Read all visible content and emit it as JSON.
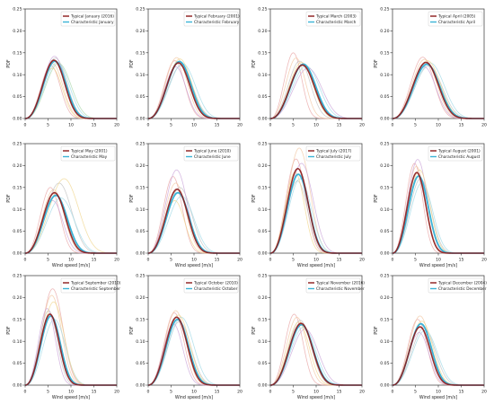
{
  "colors": {
    "typical": "#8b1a1a",
    "characteristic": "#3bb3d6",
    "faint_cycle": [
      "#e8a3a3",
      "#f2c6a0",
      "#bfbfbf",
      "#9ed8e6",
      "#c9a3d8",
      "#f0d58c",
      "#a9d7a9"
    ]
  },
  "chart_data": [
    {
      "type": "line",
      "month": "January",
      "legend": [
        "Typical January (2016)",
        "Characteristic January"
      ],
      "xlabel": "",
      "ylabel": "PDF",
      "xlim": [
        0,
        20
      ],
      "ylim": [
        0,
        0.25
      ],
      "xticks": [
        0,
        5,
        10,
        15,
        20
      ],
      "yticks": [
        0.0,
        0.05,
        0.1,
        0.15,
        0.2,
        0.25
      ],
      "typical": {
        "mode": 6.3,
        "peak": 0.133
      },
      "characteristic": {
        "mode": 6.5,
        "peak": 0.131
      },
      "faint": [
        [
          5.6,
          0.121
        ],
        [
          6.0,
          0.125
        ],
        [
          6.6,
          0.138
        ],
        [
          7.0,
          0.128
        ],
        [
          6.4,
          0.142
        ],
        [
          5.9,
          0.115
        ],
        [
          7.3,
          0.126
        ]
      ]
    },
    {
      "type": "line",
      "month": "February",
      "legend": [
        "Typical February (2001)",
        "Characteristic February"
      ],
      "xlabel": "",
      "ylabel": "PDF",
      "xlim": [
        0,
        20
      ],
      "ylim": [
        0,
        0.25
      ],
      "xticks": [
        0,
        5,
        10,
        15,
        20
      ],
      "yticks": [
        0.0,
        0.05,
        0.1,
        0.15,
        0.2,
        0.25
      ],
      "typical": {
        "mode": 6.6,
        "peak": 0.127
      },
      "characteristic": {
        "mode": 6.8,
        "peak": 0.13
      },
      "faint": [
        [
          5.8,
          0.132
        ],
        [
          6.2,
          0.139
        ],
        [
          7.1,
          0.12
        ],
        [
          7.5,
          0.125
        ],
        [
          6.0,
          0.118
        ],
        [
          6.9,
          0.136
        ]
      ]
    },
    {
      "type": "line",
      "month": "March",
      "legend": [
        "Typical March (2003)",
        "Characteristic March"
      ],
      "xlabel": "",
      "ylabel": "PDF",
      "xlim": [
        0,
        20
      ],
      "ylim": [
        0,
        0.25
      ],
      "xticks": [
        0,
        5,
        10,
        15,
        20
      ],
      "yticks": [
        0.0,
        0.05,
        0.1,
        0.15,
        0.2,
        0.25
      ],
      "typical": {
        "mode": 7.0,
        "peak": 0.122
      },
      "characteristic": {
        "mode": 7.2,
        "peak": 0.124
      },
      "faint": [
        [
          5.0,
          0.15
        ],
        [
          5.6,
          0.138
        ],
        [
          6.4,
          0.131
        ],
        [
          7.8,
          0.12
        ],
        [
          8.2,
          0.115
        ],
        [
          6.8,
          0.128
        ]
      ]
    },
    {
      "type": "line",
      "month": "April",
      "legend": [
        "Typical April (2005)",
        "Characteristic April"
      ],
      "xlabel": "",
      "ylabel": "PDF",
      "xlim": [
        0,
        20
      ],
      "ylim": [
        0,
        0.25
      ],
      "xticks": [
        0,
        5,
        10,
        15,
        20
      ],
      "yticks": [
        0.0,
        0.05,
        0.1,
        0.15,
        0.2,
        0.25
      ],
      "typical": {
        "mode": 7.3,
        "peak": 0.128
      },
      "characteristic": {
        "mode": 7.5,
        "peak": 0.124
      },
      "faint": [
        [
          6.6,
          0.14
        ],
        [
          7.0,
          0.135
        ],
        [
          7.9,
          0.12
        ],
        [
          8.2,
          0.127
        ],
        [
          6.9,
          0.118
        ],
        [
          7.6,
          0.132
        ]
      ]
    },
    {
      "type": "line",
      "month": "May",
      "legend": [
        "Typical May (2001)",
        "Characteristic May"
      ],
      "xlabel": "Wind speed [m/s]",
      "ylabel": "PDF",
      "xlim": [
        0,
        20
      ],
      "ylim": [
        0,
        0.25
      ],
      "xticks": [
        0,
        5,
        10,
        15,
        20
      ],
      "yticks": [
        0.0,
        0.05,
        0.1,
        0.15,
        0.2,
        0.25
      ],
      "typical": {
        "mode": 6.4,
        "peak": 0.138
      },
      "characteristic": {
        "mode": 6.7,
        "peak": 0.132
      },
      "faint": [
        [
          5.5,
          0.15
        ],
        [
          6.2,
          0.145
        ],
        [
          7.4,
          0.16
        ],
        [
          7.8,
          0.126
        ],
        [
          6.0,
          0.12
        ],
        [
          8.5,
          0.17
        ]
      ]
    },
    {
      "type": "line",
      "month": "June",
      "legend": [
        "Typical June (2010)",
        "Characteristic June"
      ],
      "xlabel": "Wind speed [m/s]",
      "ylabel": "PDF",
      "xlim": [
        0,
        20
      ],
      "ylim": [
        0,
        0.25
      ],
      "xticks": [
        0,
        5,
        10,
        15,
        20
      ],
      "yticks": [
        0.0,
        0.05,
        0.1,
        0.15,
        0.2,
        0.25
      ],
      "typical": {
        "mode": 6.3,
        "peak": 0.146
      },
      "characteristic": {
        "mode": 6.5,
        "peak": 0.138
      },
      "faint": [
        [
          5.4,
          0.175
        ],
        [
          6.0,
          0.16
        ],
        [
          6.9,
          0.15
        ],
        [
          7.3,
          0.13
        ],
        [
          6.2,
          0.19
        ],
        [
          5.8,
          0.12
        ]
      ]
    },
    {
      "type": "line",
      "month": "July",
      "legend": [
        "Typical July (2017)",
        "Characteristic July"
      ],
      "xlabel": "Wind speed [m/s]",
      "ylabel": "PDF",
      "xlim": [
        0,
        20
      ],
      "ylim": [
        0,
        0.25
      ],
      "xticks": [
        0,
        5,
        10,
        15,
        20
      ],
      "yticks": [
        0.0,
        0.05,
        0.1,
        0.15,
        0.2,
        0.25
      ],
      "typical": {
        "mode": 6.0,
        "peak": 0.193
      },
      "characteristic": {
        "mode": 6.1,
        "peak": 0.18
      },
      "faint": [
        [
          5.6,
          0.215
        ],
        [
          6.3,
          0.24
        ],
        [
          5.9,
          0.165
        ],
        [
          6.5,
          0.17
        ],
        [
          6.8,
          0.205
        ],
        [
          5.4,
          0.185
        ]
      ]
    },
    {
      "type": "line",
      "month": "August",
      "legend": [
        "Typical August (2001)",
        "Characteristic August"
      ],
      "xlabel": "Wind speed [m/s]",
      "ylabel": "PDF",
      "xlim": [
        0,
        20
      ],
      "ylim": [
        0,
        0.25
      ],
      "xticks": [
        0,
        5,
        10,
        15,
        20
      ],
      "yticks": [
        0.0,
        0.05,
        0.1,
        0.15,
        0.2,
        0.25
      ],
      "typical": {
        "mode": 5.3,
        "peak": 0.184
      },
      "characteristic": {
        "mode": 5.7,
        "peak": 0.176
      },
      "faint": [
        [
          4.8,
          0.205
        ],
        [
          5.2,
          0.198
        ],
        [
          6.1,
          0.17
        ],
        [
          6.4,
          0.16
        ],
        [
          5.5,
          0.214
        ],
        [
          5.9,
          0.19
        ]
      ]
    },
    {
      "type": "line",
      "month": "September",
      "legend": [
        "Typical September (2010)",
        "Characteristic September"
      ],
      "xlabel": "Wind speed [m/s]",
      "ylabel": "PDF",
      "xlim": [
        0,
        20
      ],
      "ylim": [
        0,
        0.25
      ],
      "xticks": [
        0,
        5,
        10,
        15,
        20
      ],
      "yticks": [
        0.0,
        0.05,
        0.1,
        0.15,
        0.2,
        0.25
      ],
      "typical": {
        "mode": 5.4,
        "peak": 0.162
      },
      "characteristic": {
        "mode": 5.6,
        "peak": 0.158
      },
      "faint": [
        [
          6.0,
          0.22
        ],
        [
          5.8,
          0.205
        ],
        [
          5.1,
          0.17
        ],
        [
          6.4,
          0.15
        ],
        [
          4.8,
          0.175
        ],
        [
          6.2,
          0.19
        ]
      ]
    },
    {
      "type": "line",
      "month": "October",
      "legend": [
        "Typical October (2010)",
        "Characteristic October"
      ],
      "xlabel": "Wind speed [m/s]",
      "ylabel": "PDF",
      "xlim": [
        0,
        20
      ],
      "ylim": [
        0,
        0.25
      ],
      "xticks": [
        0,
        5,
        10,
        15,
        20
      ],
      "yticks": [
        0.0,
        0.05,
        0.1,
        0.15,
        0.2,
        0.25
      ],
      "typical": {
        "mode": 6.2,
        "peak": 0.155
      },
      "characteristic": {
        "mode": 6.4,
        "peak": 0.15
      },
      "faint": [
        [
          5.7,
          0.165
        ],
        [
          6.0,
          0.17
        ],
        [
          6.8,
          0.145
        ],
        [
          7.2,
          0.155
        ],
        [
          5.5,
          0.14
        ],
        [
          6.6,
          0.16
        ]
      ]
    },
    {
      "type": "line",
      "month": "November",
      "legend": [
        "Typical November (2016)",
        "Characteristic November"
      ],
      "xlabel": "Wind speed [m/s]",
      "ylabel": "PDF",
      "xlim": [
        0,
        20
      ],
      "ylim": [
        0,
        0.25
      ],
      "xticks": [
        0,
        5,
        10,
        15,
        20
      ],
      "yticks": [
        0.0,
        0.05,
        0.1,
        0.15,
        0.2,
        0.25
      ],
      "typical": {
        "mode": 6.7,
        "peak": 0.141
      },
      "characteristic": {
        "mode": 6.8,
        "peak": 0.138
      },
      "faint": [
        [
          5.2,
          0.162
        ],
        [
          5.8,
          0.155
        ],
        [
          6.5,
          0.148
        ],
        [
          7.2,
          0.132
        ],
        [
          7.6,
          0.128
        ],
        [
          6.2,
          0.144
        ]
      ]
    },
    {
      "type": "line",
      "month": "December",
      "legend": [
        "Typical December (2004)",
        "Characteristic December"
      ],
      "xlabel": "Wind speed [m/s]",
      "ylabel": "PDF",
      "xlim": [
        0,
        20
      ],
      "ylim": [
        0,
        0.25
      ],
      "xticks": [
        0,
        5,
        10,
        15,
        20
      ],
      "yticks": [
        0.0,
        0.05,
        0.1,
        0.15,
        0.2,
        0.25
      ],
      "typical": {
        "mode": 6.0,
        "peak": 0.133
      },
      "characteristic": {
        "mode": 6.2,
        "peak": 0.14
      },
      "faint": [
        [
          5.5,
          0.15
        ],
        [
          6.0,
          0.158
        ],
        [
          6.8,
          0.13
        ],
        [
          7.1,
          0.125
        ],
        [
          5.8,
          0.12
        ],
        [
          6.4,
          0.146
        ]
      ]
    }
  ]
}
